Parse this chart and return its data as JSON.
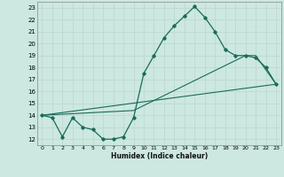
{
  "xlabel": "Humidex (Indice chaleur)",
  "xlim": [
    -0.5,
    23.5
  ],
  "ylim": [
    11.5,
    23.5
  ],
  "yticks": [
    12,
    13,
    14,
    15,
    16,
    17,
    18,
    19,
    20,
    21,
    22,
    23
  ],
  "xticks": [
    0,
    1,
    2,
    3,
    4,
    5,
    6,
    7,
    8,
    9,
    10,
    11,
    12,
    13,
    14,
    15,
    16,
    17,
    18,
    19,
    20,
    21,
    22,
    23
  ],
  "bg_color": "#cce8e0",
  "grid_color": "#b8d8d0",
  "line_color": "#1a6b5a",
  "main_x": [
    0,
    1,
    2,
    3,
    4,
    5,
    6,
    7,
    8,
    9,
    10,
    11,
    12,
    13,
    14,
    15,
    16,
    17,
    18,
    19,
    20,
    21,
    22,
    23
  ],
  "main_y": [
    14,
    13.8,
    12.2,
    13.8,
    13.0,
    12.8,
    12.0,
    12.0,
    12.2,
    13.8,
    17.5,
    19.0,
    20.5,
    21.5,
    22.3,
    23.1,
    22.2,
    21.0,
    19.5,
    19.0,
    19.0,
    18.8,
    18.0,
    16.6
  ],
  "line2_x": [
    0,
    23
  ],
  "line2_y": [
    14.0,
    16.6
  ],
  "line3_x": [
    0,
    9,
    20,
    21,
    23
  ],
  "line3_y": [
    14.0,
    14.4,
    19.0,
    19.0,
    16.6
  ]
}
